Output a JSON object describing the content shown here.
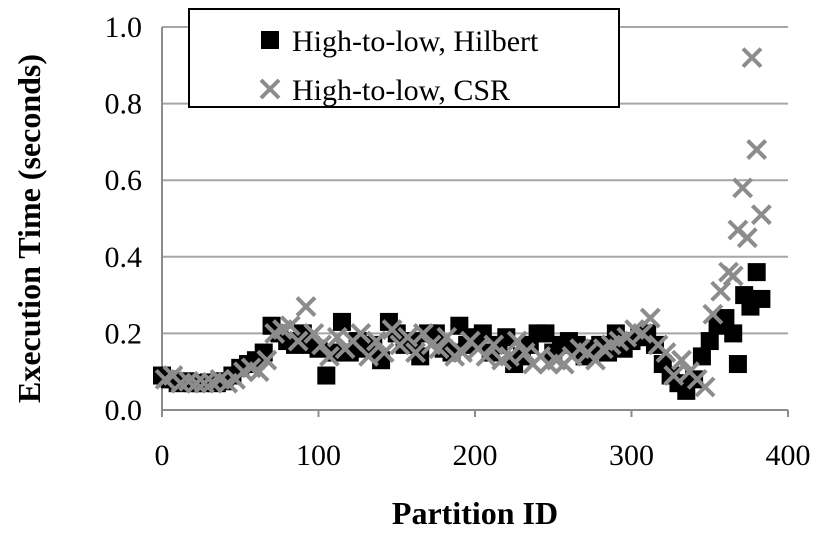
{
  "chart_data": {
    "type": "scatter",
    "title": "",
    "xlabel": "Partition ID",
    "ylabel": "Execution Time (seconds)",
    "xlim": [
      0,
      400
    ],
    "ylim": [
      0,
      1.0
    ],
    "xticks": [
      "0",
      "100",
      "200",
      "300",
      "400"
    ],
    "yticks": [
      "0.0",
      "0.2",
      "0.4",
      "0.6",
      "0.8",
      "1.0"
    ],
    "grid": "horizontal",
    "legend_position": "top-left",
    "series": [
      {
        "name": "High-to-low, Hilbert",
        "marker": "square",
        "color": "#000000",
        "x": [
          0,
          5,
          10,
          15,
          20,
          25,
          30,
          35,
          40,
          45,
          50,
          55,
          60,
          65,
          70,
          75,
          80,
          85,
          90,
          95,
          100,
          105,
          110,
          115,
          120,
          125,
          130,
          135,
          140,
          145,
          150,
          155,
          160,
          165,
          170,
          175,
          180,
          185,
          190,
          195,
          200,
          205,
          210,
          215,
          220,
          225,
          230,
          235,
          240,
          245,
          250,
          255,
          260,
          265,
          270,
          275,
          280,
          285,
          290,
          295,
          300,
          305,
          310,
          315,
          320,
          325,
          330,
          335,
          340,
          345,
          350,
          355,
          360,
          365,
          368,
          372,
          376,
          380,
          383
        ],
        "y": [
          0.09,
          0.08,
          0.07,
          0.075,
          0.07,
          0.07,
          0.072,
          0.07,
          0.075,
          0.09,
          0.11,
          0.12,
          0.13,
          0.15,
          0.22,
          0.2,
          0.18,
          0.17,
          0.2,
          0.17,
          0.16,
          0.09,
          0.15,
          0.23,
          0.15,
          0.18,
          0.16,
          0.17,
          0.13,
          0.23,
          0.2,
          0.17,
          0.18,
          0.14,
          0.2,
          0.2,
          0.16,
          0.15,
          0.22,
          0.17,
          0.19,
          0.2,
          0.15,
          0.17,
          0.19,
          0.12,
          0.14,
          0.17,
          0.2,
          0.2,
          0.15,
          0.17,
          0.18,
          0.17,
          0.14,
          0.16,
          0.17,
          0.15,
          0.2,
          0.16,
          0.18,
          0.19,
          0.2,
          0.17,
          0.12,
          0.09,
          0.07,
          0.05,
          0.08,
          0.14,
          0.18,
          0.22,
          0.24,
          0.2,
          0.12,
          0.3,
          0.27,
          0.36,
          0.29
        ]
      },
      {
        "name": "High-to-low, CSR",
        "marker": "x",
        "color": "#8c8c8c",
        "x": [
          2,
          7,
          12,
          17,
          22,
          27,
          32,
          37,
          42,
          47,
          52,
          57,
          62,
          67,
          72,
          77,
          82,
          87,
          92,
          97,
          102,
          107,
          112,
          117,
          122,
          127,
          132,
          137,
          142,
          147,
          152,
          157,
          162,
          167,
          172,
          177,
          182,
          187,
          192,
          197,
          202,
          207,
          212,
          217,
          222,
          227,
          232,
          237,
          242,
          247,
          252,
          257,
          262,
          267,
          272,
          277,
          282,
          287,
          292,
          297,
          302,
          307,
          312,
          317,
          322,
          327,
          332,
          337,
          342,
          347,
          352,
          357,
          362,
          365,
          368,
          371,
          374,
          377,
          380,
          383
        ],
        "y": [
          0.08,
          0.09,
          0.07,
          0.075,
          0.07,
          0.07,
          0.072,
          0.08,
          0.07,
          0.08,
          0.1,
          0.11,
          0.1,
          0.13,
          0.2,
          0.21,
          0.22,
          0.18,
          0.27,
          0.2,
          0.17,
          0.14,
          0.19,
          0.16,
          0.18,
          0.2,
          0.14,
          0.18,
          0.15,
          0.21,
          0.17,
          0.19,
          0.15,
          0.2,
          0.17,
          0.16,
          0.19,
          0.14,
          0.15,
          0.18,
          0.16,
          0.14,
          0.17,
          0.13,
          0.14,
          0.18,
          0.15,
          0.12,
          0.14,
          0.12,
          0.13,
          0.12,
          0.14,
          0.16,
          0.15,
          0.13,
          0.16,
          0.17,
          0.18,
          0.19,
          0.21,
          0.2,
          0.24,
          0.17,
          0.15,
          0.09,
          0.13,
          0.1,
          0.08,
          0.06,
          0.25,
          0.31,
          0.36,
          0.35,
          0.47,
          0.58,
          0.45,
          0.92,
          0.68,
          0.51
        ]
      }
    ]
  }
}
